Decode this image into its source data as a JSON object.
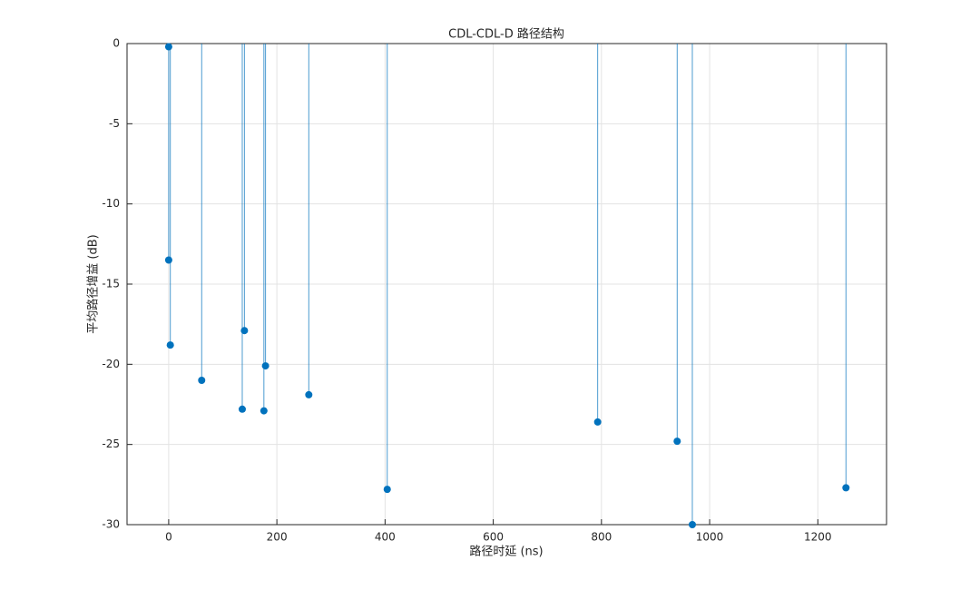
{
  "chart_data": {
    "type": "stem",
    "title": "CDL-CDL-D 路径结构",
    "x_label": "路径时延 (ns)",
    "y_label": "平均路径增益 (dB)",
    "series": [
      {
        "color": "#0072bd",
        "x": [
          0,
          0,
          3,
          61,
          136,
          140,
          176,
          179,
          259,
          404,
          793,
          940,
          968,
          1252
        ],
        "values": [
          -0.2,
          -13.5,
          -18.8,
          -21,
          -22.8,
          -17.9,
          -22.9,
          -20.1,
          -21.9,
          -27.8,
          -23.6,
          -24.8,
          -30,
          -27.7
        ]
      }
    ],
    "xlim": [
      -77,
      1327
    ],
    "ylim": [
      -30,
      0
    ],
    "xticks": [
      0,
      200,
      400,
      600,
      800,
      1000,
      1200
    ],
    "yticks": [
      -30,
      -25,
      -20,
      -15,
      -10,
      -5,
      0
    ],
    "grid": true
  }
}
